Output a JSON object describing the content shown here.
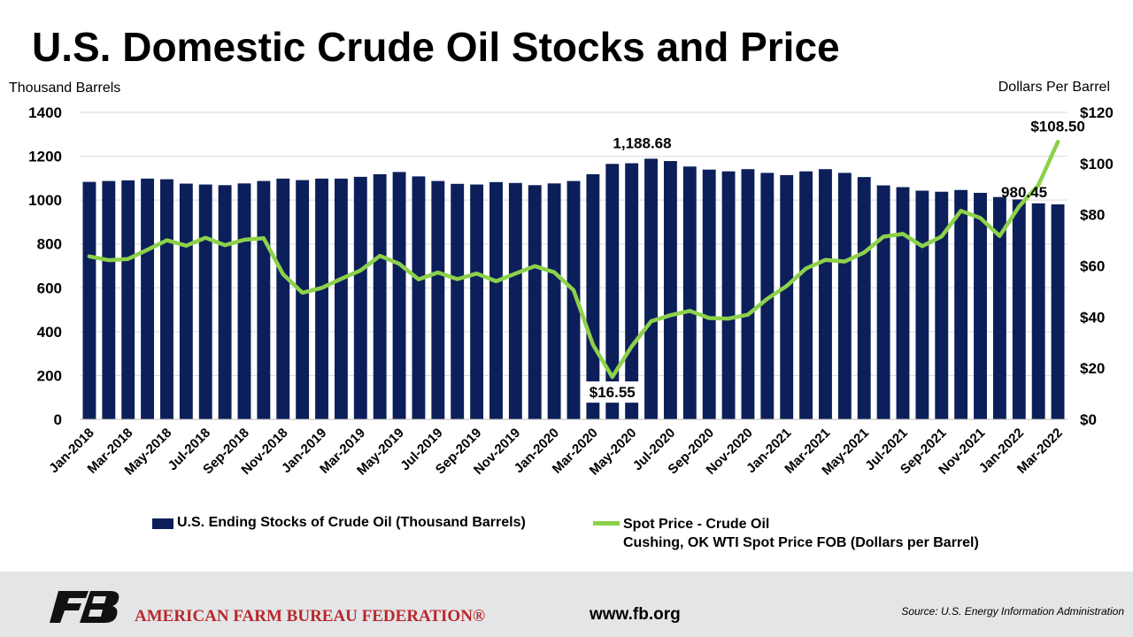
{
  "header": {
    "title": "U.S. Domestic Crude Oil Stocks and Price",
    "left_axis_title": "Thousand Barrels",
    "right_axis_title": "Dollars Per Barrel"
  },
  "legend": {
    "bars_label": "U.S. Ending Stocks of Crude Oil (Thousand Barrels)",
    "line_label_1": "Spot Price - Crude Oil",
    "line_label_2": "Cushing, OK WTI Spot Price FOB (Dollars per Barrel)"
  },
  "footer": {
    "org_name": "AMERICAN FARM BUREAU FEDERATION®",
    "website": "www.fb.org",
    "source": "Source: U.S. Energy Information Administration",
    "logo_icon": "fb-logo-icon"
  },
  "chart_data": {
    "type": "bar",
    "title": "U.S. Domestic Crude Oil Stocks and Price",
    "ylabel": "Thousand Barrels",
    "y2label": "Dollars Per Barrel",
    "ylim": [
      0,
      1400
    ],
    "y2lim": [
      0,
      120
    ],
    "yticks": [
      "0",
      "200",
      "400",
      "600",
      "800",
      "1000",
      "1200",
      "1400"
    ],
    "y2ticks": [
      "$0",
      "$20",
      "$40",
      "$60",
      "$80",
      "$100",
      "$120"
    ],
    "categories": [
      "Jan-2018",
      "Feb-2018",
      "Mar-2018",
      "Apr-2018",
      "May-2018",
      "Jun-2018",
      "Jul-2018",
      "Aug-2018",
      "Sep-2018",
      "Oct-2018",
      "Nov-2018",
      "Dec-2018",
      "Jan-2019",
      "Feb-2019",
      "Mar-2019",
      "Apr-2019",
      "May-2019",
      "Jun-2019",
      "Jul-2019",
      "Aug-2019",
      "Sep-2019",
      "Oct-2019",
      "Nov-2019",
      "Dec-2019",
      "Jan-2020",
      "Feb-2020",
      "Mar-2020",
      "Apr-2020",
      "May-2020",
      "Jun-2020",
      "Jul-2020",
      "Aug-2020",
      "Sep-2020",
      "Oct-2020",
      "Nov-2020",
      "Dec-2020",
      "Jan-2021",
      "Feb-2021",
      "Mar-2021",
      "Apr-2021",
      "May-2021",
      "Jun-2021",
      "Jul-2021",
      "Aug-2021",
      "Sep-2021",
      "Oct-2021",
      "Nov-2021",
      "Dec-2021",
      "Jan-2022",
      "Feb-2022",
      "Mar-2022"
    ],
    "tick_labels": [
      "Jan-2018",
      "Mar-2018",
      "May-2018",
      "Jul-2018",
      "Sep-2018",
      "Nov-2018",
      "Jan-2019",
      "Mar-2019",
      "May-2019",
      "Jul-2019",
      "Sep-2019",
      "Nov-2019",
      "Jan-2020",
      "Mar-2020",
      "May-2020",
      "Jul-2020",
      "Sep-2020",
      "Nov-2020",
      "Jan-2021",
      "Mar-2021",
      "May-2021",
      "Jul-2021",
      "Sep-2021",
      "Nov-2021",
      "Jan-2022",
      "Mar-2022"
    ],
    "series": [
      {
        "name": "U.S. Ending Stocks of Crude Oil (Thousand Barrels)",
        "type": "bar",
        "axis": "left",
        "color": "#0c1f5a",
        "values": [
          1083,
          1087,
          1090,
          1098,
          1095,
          1075,
          1071,
          1068,
          1076,
          1087,
          1098,
          1091,
          1098,
          1098,
          1106,
          1118,
          1128,
          1108,
          1087,
          1074,
          1071,
          1082,
          1078,
          1068,
          1076,
          1087,
          1118,
          1165,
          1168,
          1188.68,
          1178,
          1153,
          1139,
          1131,
          1141,
          1124,
          1114,
          1131,
          1141,
          1124,
          1105,
          1067,
          1059,
          1043,
          1038,
          1046,
          1033,
          1014,
          1003,
          985,
          980.45
        ]
      },
      {
        "name": "Spot Price - Crude Oil",
        "type": "line",
        "axis": "right",
        "color": "#8cd14a",
        "values": [
          63.7,
          62.2,
          62.7,
          66.3,
          70.0,
          67.9,
          71.0,
          68.1,
          70.2,
          70.8,
          56.7,
          49.5,
          51.4,
          54.9,
          58.2,
          63.9,
          60.8,
          54.7,
          57.4,
          54.8,
          57.0,
          54.0,
          57.0,
          59.9,
          57.5,
          50.5,
          29.2,
          16.55,
          28.5,
          38.3,
          40.7,
          42.4,
          39.6,
          39.4,
          40.9,
          47.1,
          52.1,
          59.0,
          62.3,
          61.7,
          65.2,
          71.4,
          72.5,
          67.7,
          71.5,
          81.5,
          78.7,
          71.7,
          83.2,
          91.6,
          108.5
        ]
      }
    ],
    "annotations": [
      {
        "series": 0,
        "index": 29,
        "text": "1,188.68"
      },
      {
        "series": 0,
        "index": 50,
        "text": "980.45"
      },
      {
        "series": 1,
        "index": 27,
        "text": "$16.55"
      },
      {
        "series": 1,
        "index": 50,
        "text": "$108.50"
      }
    ],
    "grid": true
  }
}
